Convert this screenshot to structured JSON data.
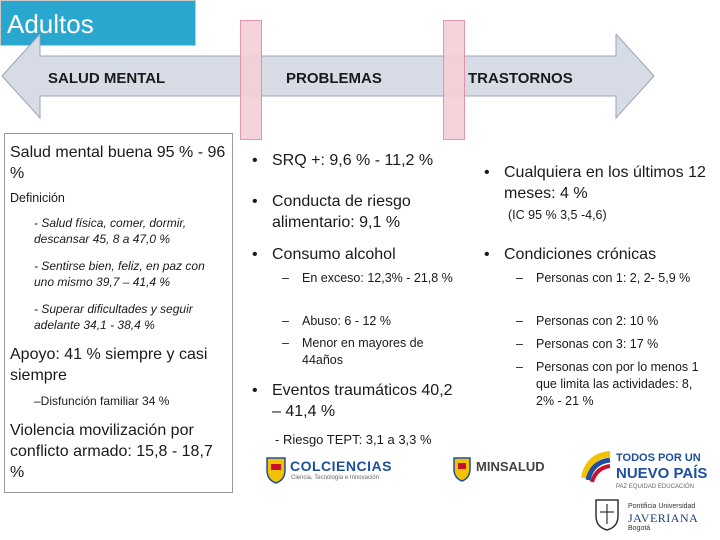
{
  "slide_title": "Adultos",
  "arrow": {
    "labels": [
      "SALUD MENTAL",
      "PROBLEMAS",
      "TRASTORNOS"
    ],
    "fill": "#d7dbe6",
    "marker_color": "#f4cfd7",
    "marker_border": "#e08aa0"
  },
  "left": {
    "p1": "Salud mental buena 95 % - 96 %",
    "def_title": "Definición",
    "def_items": [
      "- Salud física, comer, dormir, descansar 45, 8 a 47,0 %",
      "- Sentirse bien, feliz, en paz con uno mismo 39,7 – 41,4 %",
      "- Superar dificultades y seguir adelante 34,1 - 38,4 %"
    ],
    "apoyo": "Apoyo: 41 % siempre y casi siempre",
    "disfuncion": "–Disfunción familiar 34 %",
    "violencia": "Violencia movilización por conflicto armado: 15,8 - 18,7 %"
  },
  "middle": {
    "b1": "SRQ +:  9,6 % - 11,2 %",
    "b2": "Conducta de riesgo alimentario: 9,1 %",
    "b3": "Consumo alcohol",
    "subs": [
      "En exceso: 12,3% - 21,8 %",
      "Abuso: 6 - 12 %",
      "Menor en mayores de 44años"
    ],
    "b4": "Eventos traumáticos 40,2 – 41,4 %",
    "tept": "- Riesgo TEPT: 3,1 a 3,3 %"
  },
  "right": {
    "b1": "Cualquiera en los últimos 12 meses: 4 %",
    "ic": "(IC 95 % 3,5 -4,6)",
    "b2": "Condiciones crónicas",
    "subs": [
      "Personas con 1:  2, 2- 5,9 %",
      "Personas con 2:  10 %",
      "Personas con 3:  17 %",
      "Personas con por lo menos 1 que limita las actividades: 8, 2% - 21 %"
    ]
  },
  "logos": {
    "colciencias": "COLCIENCIAS",
    "colciencias_sub": "Ciencia, Tecnología e Innovación",
    "minsalud": "MINSALUD",
    "todos1": "TODOS POR UN",
    "todos2": "NUEVO PAÍS",
    "todos3": "PAZ   EQUIDAD   EDUCACIÓN",
    "pont": "Pontificia Universidad",
    "javeriana": "JAVERIANA",
    "bogota": "Bogotá"
  },
  "bullet_char": "•",
  "dash_char": "–"
}
